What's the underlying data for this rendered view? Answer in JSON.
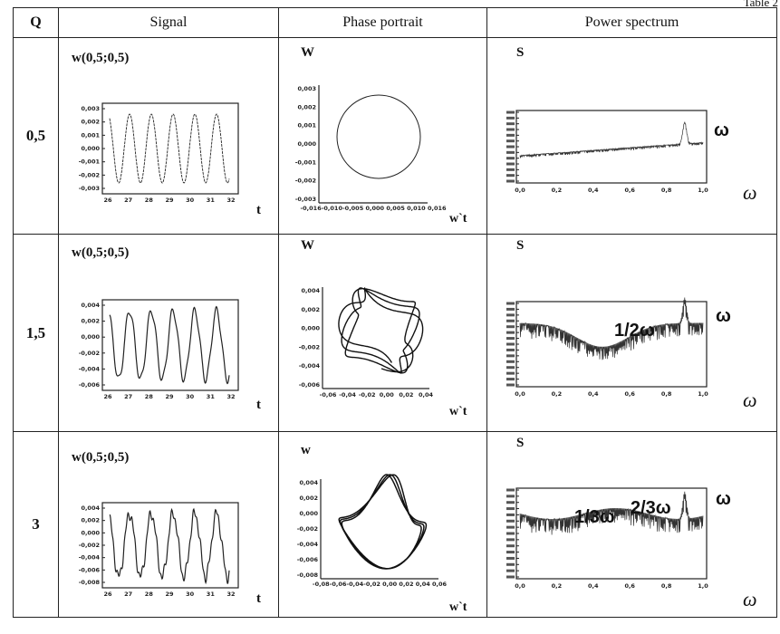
{
  "table": {
    "caption": "Table 2",
    "headers": {
      "q": "Q",
      "signal": "Signal",
      "phase": "Phase portrait",
      "spectrum": "Power spectrum"
    },
    "rows": [
      {
        "q": "0,5",
        "signal": {
          "title": "w(0,5;0,5)",
          "xlabel": "t",
          "yticks": [
            "0,003",
            "0,002",
            "0,001",
            "0,000",
            "-0,001",
            "-0,002",
            "-0,003"
          ],
          "xticks": [
            "26",
            "27",
            "28",
            "29",
            "30",
            "31",
            "32"
          ]
        },
        "phase": {
          "ylabel": "W",
          "xlabel": "w`t",
          "yticks": [
            "0,003",
            "0,002",
            "0,001",
            "0,000",
            "-0,001",
            "-0,002",
            "-0,003"
          ],
          "xticks": "-0,016-0,010-0,005 0,000 0,005 0,010 0,016"
        },
        "spectrum": {
          "ylabel": "S",
          "xlabel": "ω",
          "xticks": [
            "0,0",
            "0,2",
            "0,4",
            "0,6",
            "0,8",
            "1,0"
          ],
          "annotations": [
            "ω"
          ]
        }
      },
      {
        "q": "1,5",
        "signal": {
          "title": "w(0,5;0,5)",
          "xlabel": "t",
          "yticks": [
            "0,004",
            "0,002",
            "0,000",
            "-0,002",
            "-0,004",
            "-0,006"
          ],
          "xticks": [
            "26",
            "27",
            "28",
            "29",
            "30",
            "31",
            "32"
          ]
        },
        "phase": {
          "ylabel": "W",
          "xlabel": "w`t",
          "yticks": [
            "0,004",
            "0,002",
            "0,000",
            "-0,002",
            "-0,004",
            "-0,006"
          ],
          "xticks": [
            "-0,06",
            "-0,04",
            "-0,02",
            "0,00",
            "0,02",
            "0,04"
          ]
        },
        "spectrum": {
          "ylabel": "S",
          "xlabel": "ω",
          "xticks": [
            "0,0",
            "0,2",
            "0,4",
            "0,6",
            "0,8",
            "1,0"
          ],
          "annotations": [
            "1/2ω",
            "ω"
          ]
        }
      },
      {
        "q": "3",
        "signal": {
          "title": "w(0,5;0,5)",
          "xlabel": "t",
          "yticks": [
            "0,004",
            "0,002",
            "0,000",
            "-0,002",
            "-0,004",
            "-0,006",
            "-0,008"
          ],
          "xticks": [
            "26",
            "27",
            "28",
            "29",
            "30",
            "31",
            "32"
          ]
        },
        "phase": {
          "ylabel": "w",
          "xlabel": "w`t",
          "yticks": [
            "0,004",
            "0,002",
            "0,000",
            "-0,002",
            "-0,004",
            "-0,006",
            "-0,008"
          ],
          "xticks": "-0,08-0,06-0,04-0,02 0,00 0,02 0,04 0,06"
        },
        "spectrum": {
          "ylabel": "S",
          "xlabel": "ω",
          "xticks": [
            "0,0",
            "0,2",
            "0,4",
            "0,6",
            "0,8",
            "1,0"
          ],
          "annotations": [
            "1/3ω",
            "2/3ω",
            "ω"
          ]
        }
      }
    ]
  }
}
